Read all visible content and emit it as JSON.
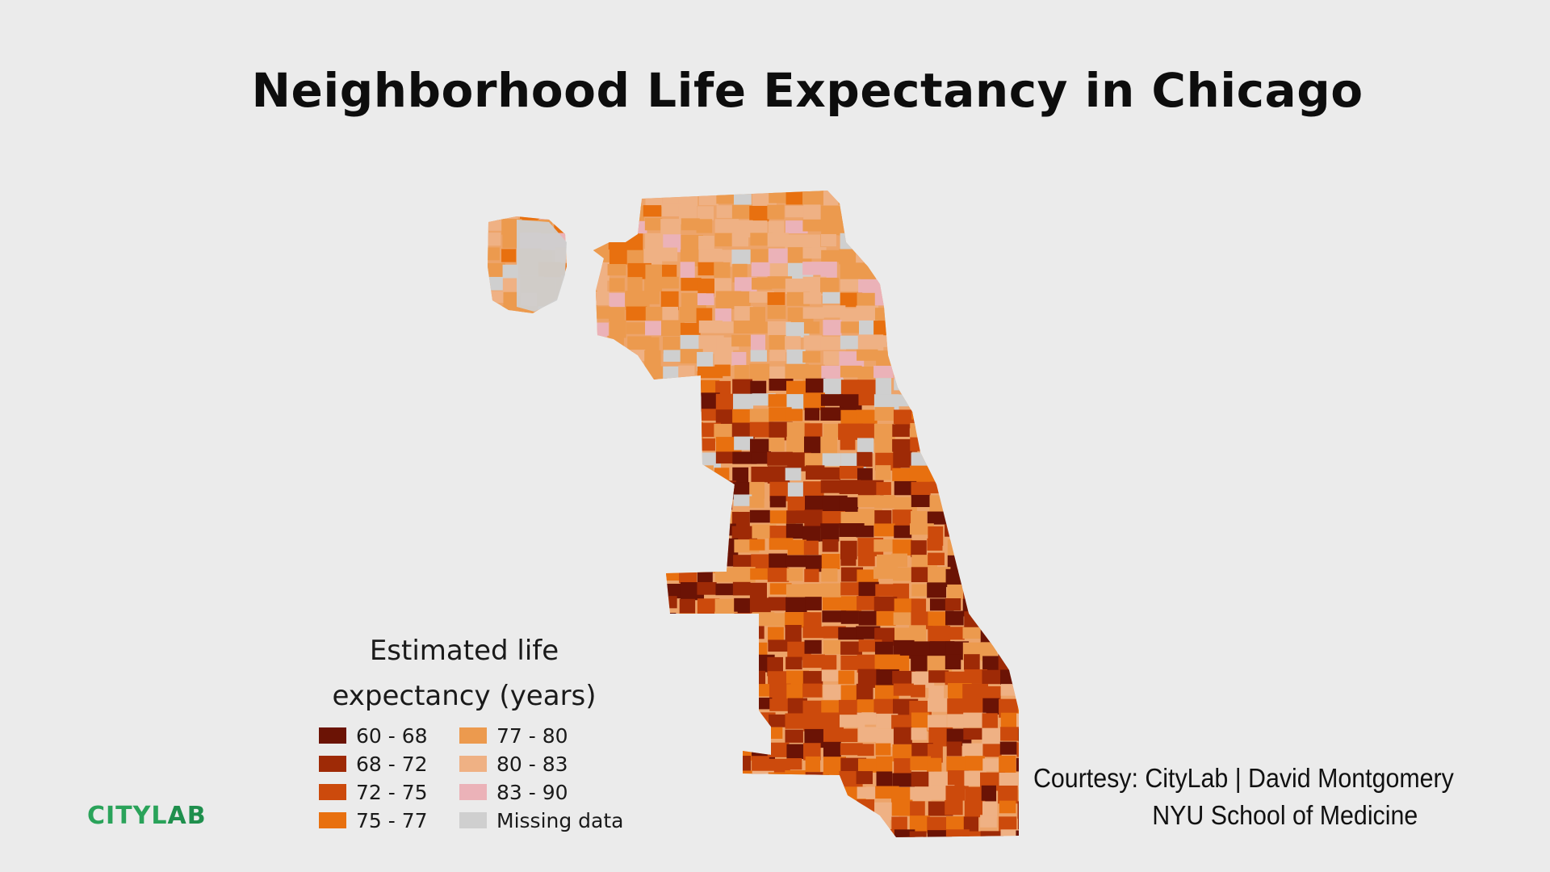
{
  "title": "Neighborhood Life Expectancy in Chicago",
  "legend": {
    "title_line1": "Estimated life",
    "title_line2": "expectancy (years)",
    "items": [
      {
        "label": "60 - 68",
        "color": "#6b1305"
      },
      {
        "label": "68 - 72",
        "color": "#9e2a06"
      },
      {
        "label": "72 - 75",
        "color": "#cc4a0c"
      },
      {
        "label": "75 - 77",
        "color": "#e8700f"
      },
      {
        "label": "77 - 80",
        "color": "#ec9a4e"
      },
      {
        "label": "80 - 83",
        "color": "#efb184"
      },
      {
        "label": "83 - 90",
        "color": "#ebb2b8"
      },
      {
        "label": "Missing data",
        "color": "#cfcfcf"
      }
    ]
  },
  "logo": {
    "part1": "CITYL",
    "part2": "AB"
  },
  "credit": {
    "line1": "Courtesy: CityLab  |  David Montgomery",
    "line2": "NYU School of Medicine"
  }
}
